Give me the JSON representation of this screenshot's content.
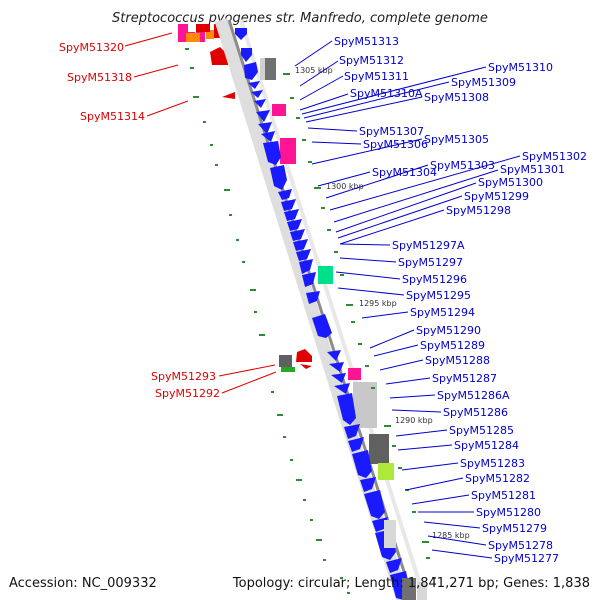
{
  "title": "Streptococcus pyogenes str. Manfredo, complete genome",
  "footer": {
    "accession": "Accession: NC_009332",
    "summary": "Topology: circular; Length: 1,841,271 bp; Genes: 1,838"
  },
  "colors": {
    "forward_cds": "#1a1aff",
    "rna_gene": "#ff1493",
    "grey_feature": "#707070",
    "light_grey_feature": "#cfcfcf",
    "left_label": "#e00000",
    "right_label": "#0000cc",
    "tick": "#2e8b2e",
    "backbone": "#8c8c8c"
  },
  "scale_marks": [
    "1305 kbp",
    "1300 kbp",
    "1295 kbp",
    "1290 kbp",
    "1285 kbp"
  ],
  "left_genes": [
    "SpyM51320",
    "SpyM51318",
    "SpyM51314",
    "SpyM51293",
    "SpyM51292"
  ],
  "right_genes": [
    "SpyM51313",
    "SpyM51312",
    "SpyM51311",
    "SpyM51310A",
    "SpyM51310",
    "SpyM51309",
    "SpyM51308",
    "SpyM51307",
    "SpyM51306",
    "SpyM51305",
    "SpyM51304",
    "SpyM51303",
    "SpyM51302",
    "SpyM51301",
    "SpyM51300",
    "SpyM51299",
    "SpyM51298",
    "SpyM51297A",
    "SpyM51297",
    "SpyM51296",
    "SpyM51295",
    "SpyM51294",
    "SpyM51290",
    "SpyM51289",
    "SpyM51288",
    "SpyM51287",
    "SpyM51286A",
    "SpyM51286",
    "SpyM51285",
    "SpyM51284",
    "SpyM51283",
    "SpyM51282",
    "SpyM51281",
    "SpyM51280",
    "SpyM51279",
    "SpyM51278",
    "SpyM51277"
  ]
}
